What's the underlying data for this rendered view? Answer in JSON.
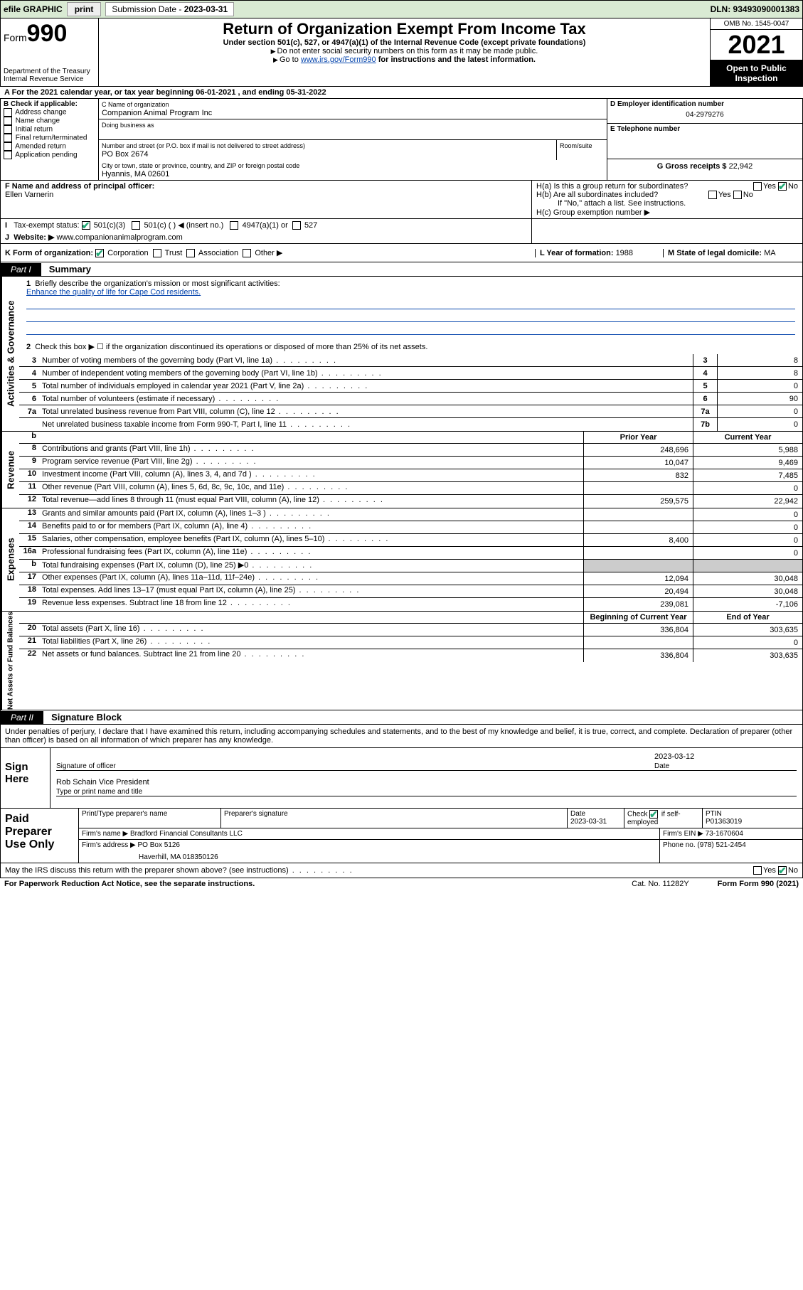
{
  "topbar": {
    "efile": "efile GRAPHIC",
    "print": "print",
    "subdate_label": "Submission Date - ",
    "subdate": "2023-03-31",
    "dln": "DLN: 93493090001383"
  },
  "header": {
    "form_label": "Form",
    "form_num": "990",
    "dept": "Department of the Treasury",
    "irs": "Internal Revenue Service",
    "title": "Return of Organization Exempt From Income Tax",
    "sub": "Under section 501(c), 527, or 4947(a)(1) of the Internal Revenue Code (except private foundations)",
    "note1": "Do not enter social security numbers on this form as it may be made public.",
    "note2_pre": "Go to ",
    "note2_link": "www.irs.gov/Form990",
    "note2_post": " for instructions and the latest information.",
    "omb": "OMB No. 1545-0047",
    "year": "2021",
    "open": "Open to Public Inspection"
  },
  "period": {
    "label_a": "A For the 2021 calendar year, or tax year beginning ",
    "begin": "06-01-2021",
    "mid": " , and ending ",
    "end": "05-31-2022"
  },
  "blockB": {
    "label": "B Check if applicable:",
    "items": [
      "Address change",
      "Name change",
      "Initial return",
      "Final return/terminated",
      "Amended return",
      "Application pending"
    ]
  },
  "blockC": {
    "name_label": "C Name of organization",
    "name": "Companion Animal Program Inc",
    "dba_label": "Doing business as",
    "street_label": "Number and street (or P.O. box if mail is not delivered to street address)",
    "street": "PO Box 2674",
    "room_label": "Room/suite",
    "city_label": "City or town, state or province, country, and ZIP or foreign postal code",
    "city": "Hyannis, MA  02601"
  },
  "blockD": {
    "label": "D Employer identification number",
    "value": "04-2979276"
  },
  "blockE": {
    "label": "E Telephone number",
    "value": ""
  },
  "blockG": {
    "label": "G Gross receipts $ ",
    "value": "22,942"
  },
  "blockF": {
    "label": "F Name and address of principal officer:",
    "name": "Ellen Varnerin"
  },
  "blockH": {
    "ha": "H(a)  Is this a group return for subordinates?",
    "hb": "H(b)  Are all subordinates included?",
    "note": "If \"No,\" attach a list. See instructions.",
    "hc": "H(c)  Group exemption number ▶",
    "yes": "Yes",
    "no": "No"
  },
  "blockI": {
    "label": "Tax-exempt status:",
    "opts": [
      "501(c)(3)",
      "501(c) (  ) ◀ (insert no.)",
      "4947(a)(1) or",
      "527"
    ]
  },
  "blockJ": {
    "label": "Website: ▶",
    "value": "www.companionanimalprogram.com"
  },
  "blockK": {
    "label": "K Form of organization:",
    "opts": [
      "Corporation",
      "Trust",
      "Association",
      "Other ▶"
    ]
  },
  "blockL": {
    "label": "L Year of formation: ",
    "value": "1988"
  },
  "blockM": {
    "label": "M State of legal domicile: ",
    "value": "MA"
  },
  "part1": {
    "label": "Part I",
    "title": "Summary",
    "bands": {
      "gov": "Activities & Governance",
      "rev": "Revenue",
      "exp": "Expenses",
      "net": "Net Assets or Fund Balances"
    },
    "q1": "Briefly describe the organization's mission or most significant activities:",
    "mission": "Enhance the quality of life for Cape Cod residents.",
    "q2": "Check this box ▶ ☐  if the organization discontinued its operations or disposed of more than 25% of its net assets.",
    "lines_gov": [
      {
        "n": "3",
        "t": "Number of voting members of the governing body (Part VI, line 1a)",
        "box": "3",
        "v": "8"
      },
      {
        "n": "4",
        "t": "Number of independent voting members of the governing body (Part VI, line 1b)",
        "box": "4",
        "v": "8"
      },
      {
        "n": "5",
        "t": "Total number of individuals employed in calendar year 2021 (Part V, line 2a)",
        "box": "5",
        "v": "0"
      },
      {
        "n": "6",
        "t": "Total number of volunteers (estimate if necessary)",
        "box": "6",
        "v": "90"
      },
      {
        "n": "7a",
        "t": "Total unrelated business revenue from Part VIII, column (C), line 12",
        "box": "7a",
        "v": "0"
      },
      {
        "n": "",
        "t": "Net unrelated business taxable income from Form 990-T, Part I, line 11",
        "box": "7b",
        "v": "0"
      }
    ],
    "col_head": {
      "b": "b",
      "prior": "Prior Year",
      "curr": "Current Year"
    },
    "lines_rev": [
      {
        "n": "8",
        "t": "Contributions and grants (Part VIII, line 1h)",
        "p": "248,696",
        "c": "5,988"
      },
      {
        "n": "9",
        "t": "Program service revenue (Part VIII, line 2g)",
        "p": "10,047",
        "c": "9,469"
      },
      {
        "n": "10",
        "t": "Investment income (Part VIII, column (A), lines 3, 4, and 7d )",
        "p": "832",
        "c": "7,485"
      },
      {
        "n": "11",
        "t": "Other revenue (Part VIII, column (A), lines 5, 6d, 8c, 9c, 10c, and 11e)",
        "p": "",
        "c": "0"
      },
      {
        "n": "12",
        "t": "Total revenue—add lines 8 through 11 (must equal Part VIII, column (A), line 12)",
        "p": "259,575",
        "c": "22,942"
      }
    ],
    "lines_exp": [
      {
        "n": "13",
        "t": "Grants and similar amounts paid (Part IX, column (A), lines 1–3 )",
        "p": "",
        "c": "0"
      },
      {
        "n": "14",
        "t": "Benefits paid to or for members (Part IX, column (A), line 4)",
        "p": "",
        "c": "0"
      },
      {
        "n": "15",
        "t": "Salaries, other compensation, employee benefits (Part IX, column (A), lines 5–10)",
        "p": "8,400",
        "c": "0"
      },
      {
        "n": "16a",
        "t": "Professional fundraising fees (Part IX, column (A), line 11e)",
        "p": "",
        "c": "0"
      },
      {
        "n": "b",
        "t": "Total fundraising expenses (Part IX, column (D), line 25) ▶0",
        "p": "shade",
        "c": "shade"
      },
      {
        "n": "17",
        "t": "Other expenses (Part IX, column (A), lines 11a–11d, 11f–24e)",
        "p": "12,094",
        "c": "30,048"
      },
      {
        "n": "18",
        "t": "Total expenses. Add lines 13–17 (must equal Part IX, column (A), line 25)",
        "p": "20,494",
        "c": "30,048"
      },
      {
        "n": "19",
        "t": "Revenue less expenses. Subtract line 18 from line 12",
        "p": "239,081",
        "c": "-7,106"
      }
    ],
    "col_head2": {
      "prior": "Beginning of Current Year",
      "curr": "End of Year"
    },
    "lines_net": [
      {
        "n": "20",
        "t": "Total assets (Part X, line 16)",
        "p": "336,804",
        "c": "303,635"
      },
      {
        "n": "21",
        "t": "Total liabilities (Part X, line 26)",
        "p": "",
        "c": "0"
      },
      {
        "n": "22",
        "t": "Net assets or fund balances. Subtract line 21 from line 20",
        "p": "336,804",
        "c": "303,635"
      }
    ]
  },
  "part2": {
    "label": "Part II",
    "title": "Signature Block",
    "decl": "Under penalties of perjury, I declare that I have examined this return, including accompanying schedules and statements, and to the best of my knowledge and belief, it is true, correct, and complete. Declaration of preparer (other than officer) is based on all information of which preparer has any knowledge.",
    "sign_here": "Sign Here",
    "sig_officer": "Signature of officer",
    "date": "Date",
    "sigdate": "2023-03-12",
    "name_title": "Rob Schain  Vice President",
    "name_title_label": "Type or print name and title"
  },
  "preparer": {
    "label": "Paid Preparer Use Only",
    "print_label": "Print/Type preparer's name",
    "sig_label": "Preparer's signature",
    "date_label": "Date",
    "date": "2023-03-31",
    "check_label": "Check",
    "self": "if self-employed",
    "ptin_label": "PTIN",
    "ptin": "P01363019",
    "firm_name_label": "Firm's name   ▶",
    "firm_name": "Bradford Financial Consultants LLC",
    "firm_ein_label": "Firm's EIN ▶",
    "firm_ein": "73-1670604",
    "firm_addr_label": "Firm's address ▶",
    "firm_addr1": "PO Box 5126",
    "firm_addr2": "Haverhill, MA  018350126",
    "phone_label": "Phone no.",
    "phone": "(978) 521-2454",
    "discuss": "May the IRS discuss this return with the preparer shown above? (see instructions)"
  },
  "footer": {
    "pra": "For Paperwork Reduction Act Notice, see the separate instructions.",
    "cat": "Cat. No. 11282Y",
    "form": "Form 990 (2021)"
  },
  "colors": {
    "topbar": "#d9ead3",
    "link": "#0645ad",
    "check": "#22aa55",
    "shade": "#cccccc"
  }
}
